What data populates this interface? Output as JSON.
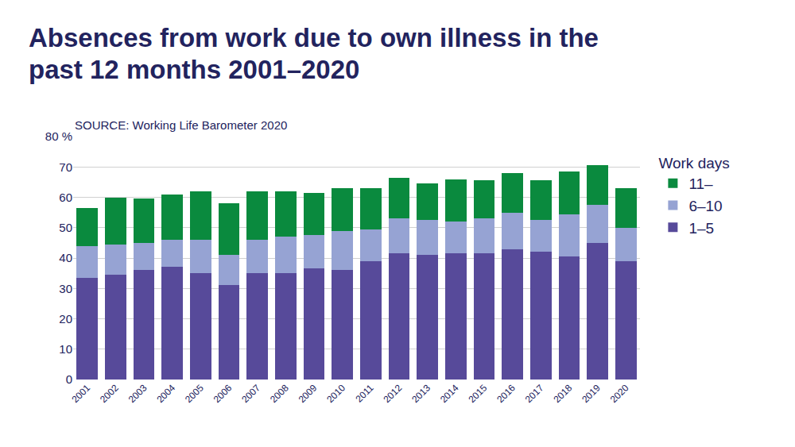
{
  "chart_data": {
    "type": "bar",
    "title": "Absences from work due to own illness in the past 12 months 2001–2020",
    "annotations": [
      "SOURCE: Working Life Barometer 2020"
    ],
    "legend_title": "Work days",
    "categories": [
      "2001",
      "2002",
      "2003",
      "2004",
      "2005",
      "2006",
      "2007",
      "2008",
      "2009",
      "2010",
      "2011",
      "2012",
      "2013",
      "2014",
      "2015",
      "2016",
      "2017",
      "2018",
      "2019",
      "2020"
    ],
    "series": [
      {
        "name": "1–5",
        "color": "#574a9a",
        "values": [
          33.5,
          34.5,
          36,
          37,
          35,
          31,
          35,
          35,
          36.5,
          36,
          39,
          41.5,
          41,
          41.5,
          41.5,
          43,
          42,
          40.5,
          45,
          39
        ]
      },
      {
        "name": "6–10",
        "color": "#96a3d3",
        "values": [
          10.5,
          10,
          9,
          9,
          11,
          10,
          11,
          12,
          11,
          13,
          10.5,
          11.5,
          11.5,
          10.5,
          11.5,
          12,
          10.5,
          14,
          12.5,
          11
        ]
      },
      {
        "name": "11–",
        "color": "#0a8a3e",
        "values": [
          12.5,
          15.5,
          14.5,
          15,
          16,
          17,
          16,
          15,
          14,
          14,
          13.5,
          13.5,
          12,
          14,
          12.5,
          13,
          13,
          14,
          13,
          13
        ]
      }
    ],
    "stacked": true,
    "ylim": [
      0,
      80
    ],
    "yticks": [
      0,
      10,
      20,
      30,
      40,
      50,
      60,
      70,
      {
        "value": 80,
        "label": "80 %"
      }
    ],
    "grid": true,
    "legend": "right"
  }
}
